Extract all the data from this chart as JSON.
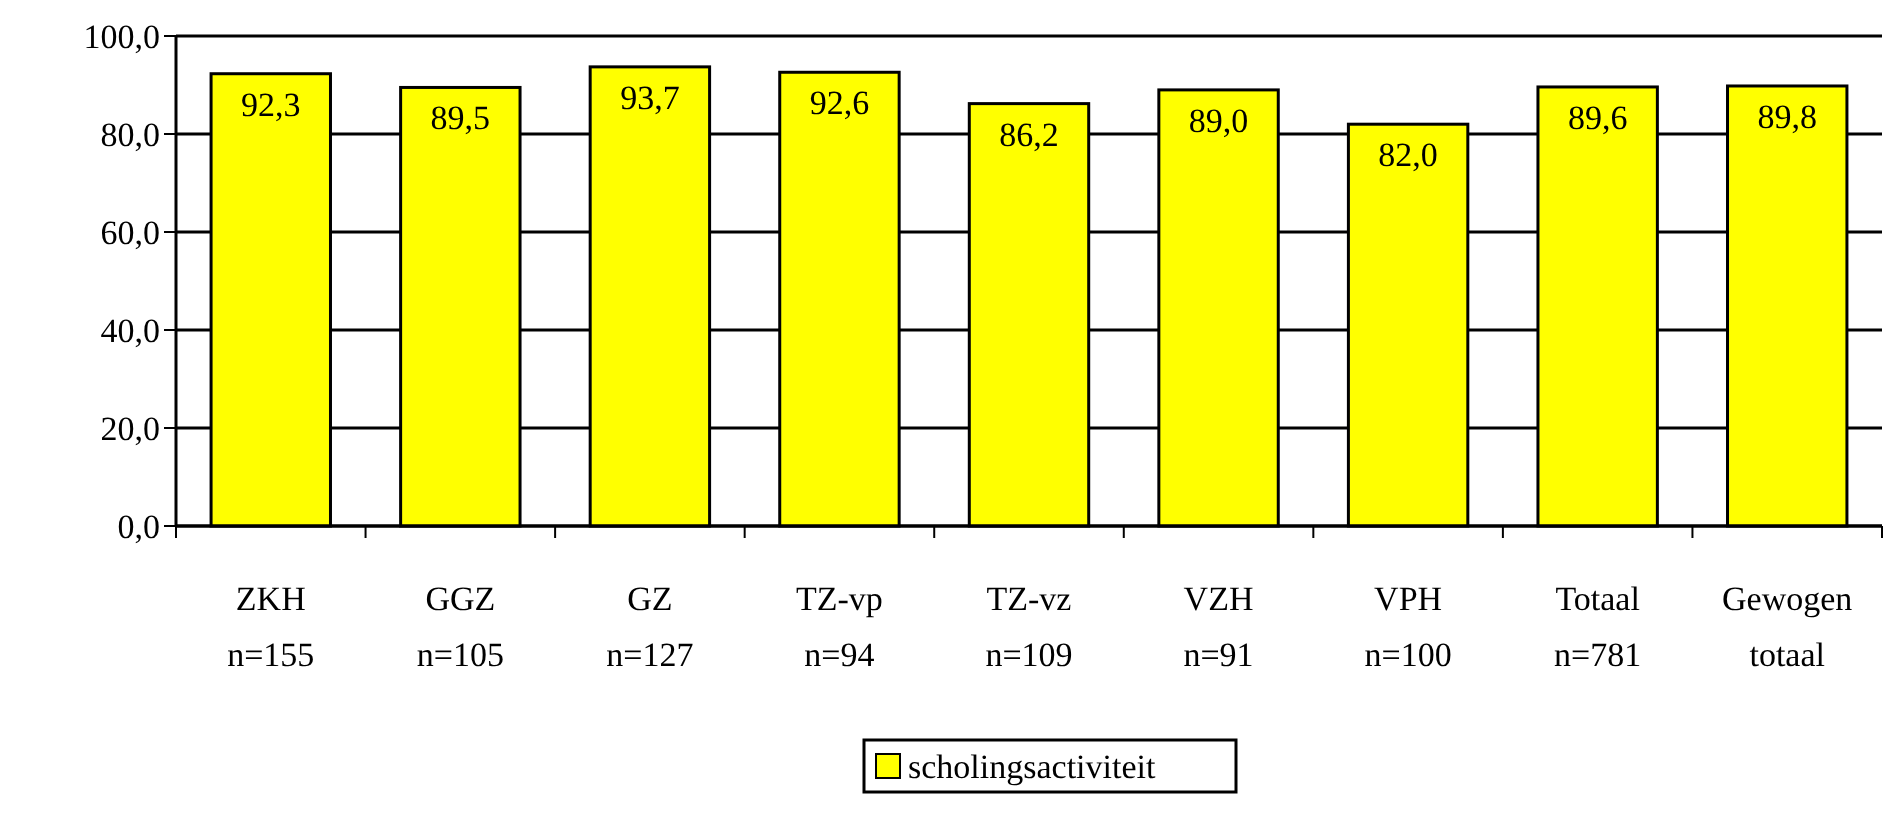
{
  "chart_data": {
    "type": "bar",
    "categories": [
      "ZKH\nn=155",
      "GGZ\nn=105",
      "GZ\nn=127",
      "TZ-vp\nn=94",
      "TZ-vz\nn=109",
      "VZH\nn=91",
      "VPH\nn=100",
      "Totaal\nn=781",
      "Gewogen\ntotaal"
    ],
    "series": [
      {
        "name": "scholingsactiviteit",
        "color": "#ffff00",
        "values": [
          92.3,
          89.5,
          93.7,
          92.6,
          86.2,
          89.0,
          82.0,
          89.6,
          89.8
        ],
        "value_labels": [
          "92,3",
          "89,5",
          "93,7",
          "92,6",
          "86,2",
          "89,0",
          "82,0",
          "89,6",
          "89,8"
        ]
      }
    ],
    "ylim": [
      0,
      100
    ],
    "yticks": [
      {
        "value": 0,
        "label": "0,0"
      },
      {
        "value": 20,
        "label": "20,0"
      },
      {
        "value": 40,
        "label": "40,0"
      },
      {
        "value": 60,
        "label": "60,0"
      },
      {
        "value": 80,
        "label": "80,0"
      },
      {
        "value": 100,
        "label": "100,0"
      }
    ],
    "grid": "y",
    "legend": "bottom"
  }
}
